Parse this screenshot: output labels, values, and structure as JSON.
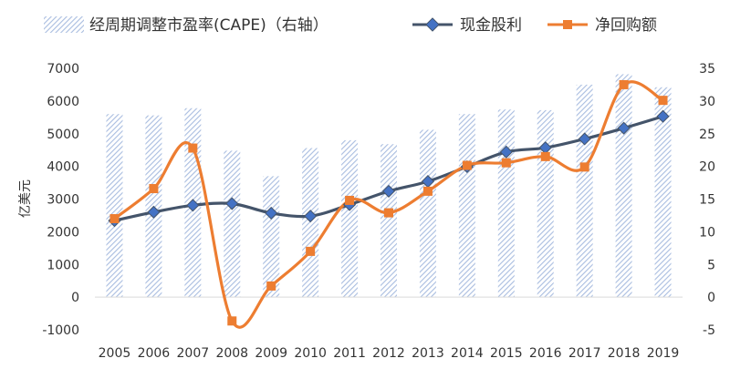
{
  "chart_data": {
    "type": "bar+line",
    "categories": [
      "2005",
      "2006",
      "2007",
      "2008",
      "2009",
      "2010",
      "2011",
      "2012",
      "2013",
      "2014",
      "2015",
      "2016",
      "2017",
      "2018",
      "2019"
    ],
    "bar_series": {
      "name": "经周期调整市盈率(CAPE)（右轴）",
      "axis": "right",
      "values": [
        28.0,
        27.8,
        28.9,
        22.4,
        18.5,
        22.8,
        24.0,
        23.4,
        25.6,
        28.0,
        28.7,
        28.6,
        32.5,
        34.1,
        32.1
      ]
    },
    "series": [
      {
        "name": "现金股利",
        "axis": "left",
        "color": "#44546A",
        "values": [
          2340,
          2600,
          2810,
          2860,
          2570,
          2480,
          2830,
          3240,
          3540,
          3990,
          4440,
          4570,
          4840,
          5170,
          5530
        ]
      },
      {
        "name": "净回购额",
        "axis": "left",
        "color": "#ED7D31",
        "values": [
          2400,
          3320,
          4560,
          -730,
          340,
          1400,
          2960,
          2580,
          3240,
          4030,
          4110,
          4300,
          3980,
          6500,
          6020
        ]
      }
    ],
    "ylabel": "亿美元",
    "ylim_left": [
      -1000,
      7000
    ],
    "yticks_left": [
      "-1000",
      "0",
      "1000",
      "2000",
      "3000",
      "4000",
      "5000",
      "6000",
      "7000"
    ],
    "ylim_right": [
      -5,
      35
    ],
    "yticks_right": [
      "-5",
      "0",
      "5",
      "10",
      "15",
      "20",
      "25",
      "30",
      "35"
    ],
    "legend_position": "top",
    "grid": false,
    "colors": {
      "bar_hatch": "#A9BDE0",
      "dividend": "#44546A",
      "buyback": "#ED7D31"
    }
  }
}
